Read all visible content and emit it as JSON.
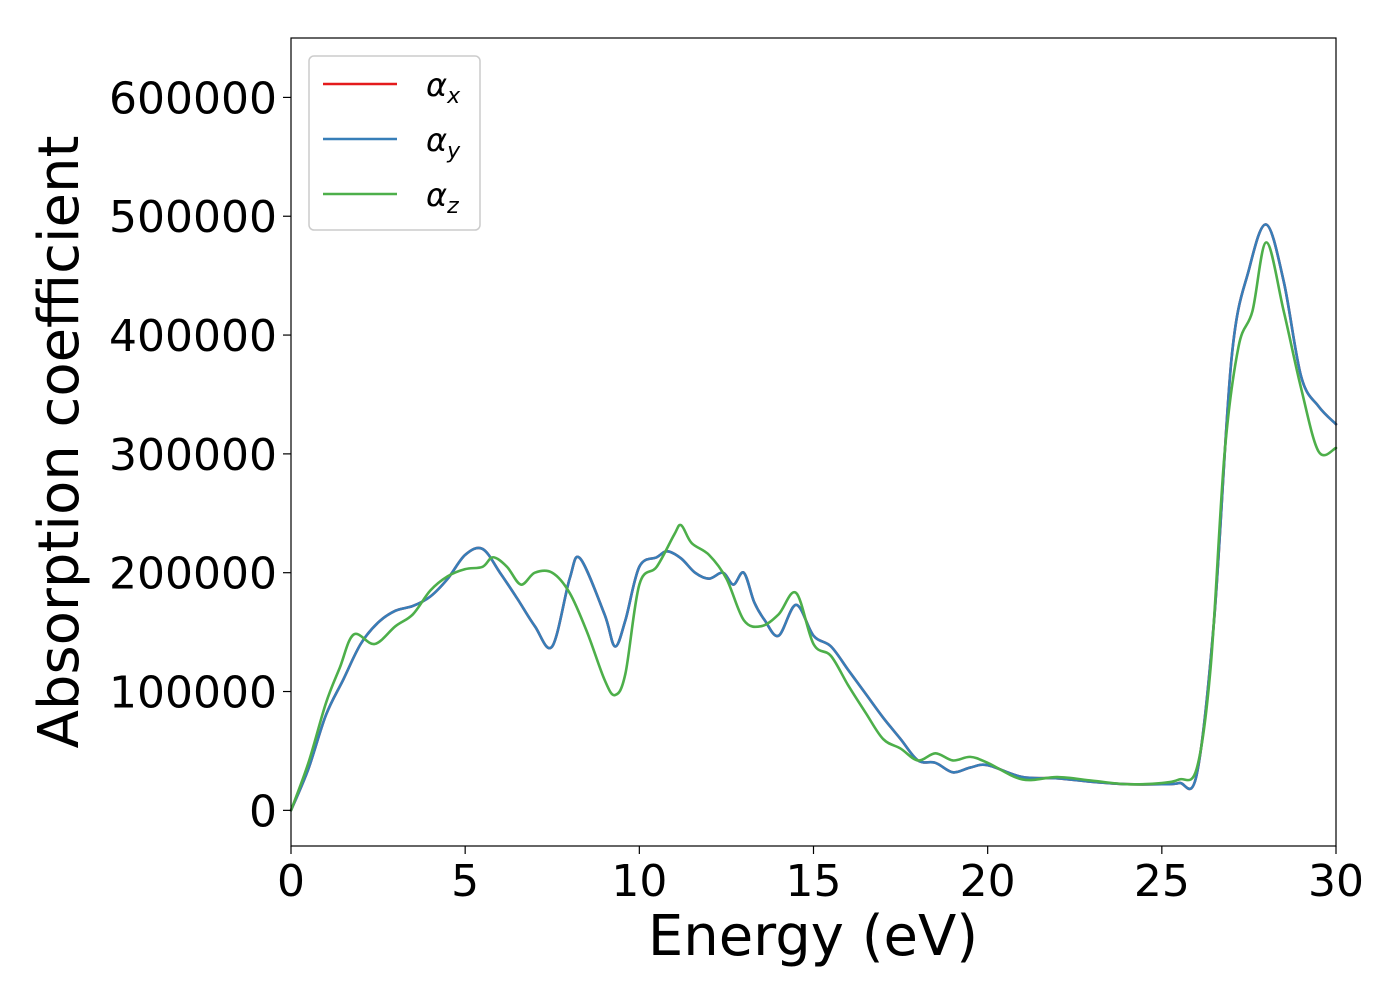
{
  "chart_data": {
    "type": "line",
    "title": "",
    "xlabel": "Energy (eV)",
    "ylabel": "Absorption coefficient",
    "xlim": [
      0,
      30
    ],
    "ylim": [
      -30000,
      650000
    ],
    "xticks": [
      0,
      5,
      10,
      15,
      20,
      25,
      30
    ],
    "yticks": [
      0,
      100000,
      200000,
      300000,
      400000,
      500000,
      600000
    ],
    "xtick_labels": [
      "0",
      "5",
      "10",
      "15",
      "20",
      "25",
      "30"
    ],
    "ytick_labels": [
      "0",
      "100000",
      "200000",
      "300000",
      "400000",
      "500000",
      "600000"
    ],
    "grid": false,
    "legend_position": "top-left",
    "series": [
      {
        "name": "αx",
        "name_base": "α",
        "name_sub": "x",
        "color": "#e41a1c",
        "x": [
          0,
          0.5,
          1.0,
          1.5,
          2.0,
          2.5,
          3.0,
          3.5,
          4.0,
          4.5,
          5.0,
          5.5,
          6.0,
          6.5,
          7.0,
          7.5,
          8.0,
          8.3,
          9.0,
          9.3,
          9.6,
          10.0,
          10.5,
          10.8,
          11.2,
          11.6,
          12.0,
          12.4,
          12.7,
          13.0,
          13.3,
          13.6,
          14.0,
          14.5,
          15.0,
          15.5,
          16.0,
          16.5,
          17.0,
          17.5,
          18.0,
          18.5,
          19.0,
          19.5,
          20.0,
          21.0,
          22.0,
          23.0,
          24.0,
          25.0,
          25.5,
          26.0,
          26.5,
          27.0,
          27.5,
          28.0,
          28.5,
          29.0,
          29.5,
          30.0
        ],
        "values": [
          0,
          35000,
          80000,
          110000,
          140000,
          158000,
          168000,
          172000,
          180000,
          195000,
          215000,
          220000,
          200000,
          178000,
          155000,
          138000,
          195000,
          212000,
          165000,
          138000,
          160000,
          205000,
          213000,
          218000,
          212000,
          200000,
          195000,
          200000,
          190000,
          200000,
          175000,
          160000,
          147000,
          173000,
          147000,
          138000,
          118000,
          98000,
          78000,
          60000,
          42000,
          40000,
          32000,
          36000,
          38000,
          28000,
          27000,
          24000,
          22000,
          22000,
          23000,
          30000,
          160000,
          380000,
          455000,
          493000,
          445000,
          365000,
          340000,
          325000
        ]
      },
      {
        "name": "αy",
        "name_base": "α",
        "name_sub": "y",
        "color": "#377eb8",
        "x": [
          0,
          0.5,
          1.0,
          1.5,
          2.0,
          2.5,
          3.0,
          3.5,
          4.0,
          4.5,
          5.0,
          5.5,
          6.0,
          6.5,
          7.0,
          7.5,
          8.0,
          8.3,
          9.0,
          9.3,
          9.6,
          10.0,
          10.5,
          10.8,
          11.2,
          11.6,
          12.0,
          12.4,
          12.7,
          13.0,
          13.3,
          13.6,
          14.0,
          14.5,
          15.0,
          15.5,
          16.0,
          16.5,
          17.0,
          17.5,
          18.0,
          18.5,
          19.0,
          19.5,
          20.0,
          21.0,
          22.0,
          23.0,
          24.0,
          25.0,
          25.5,
          26.0,
          26.5,
          27.0,
          27.5,
          28.0,
          28.5,
          29.0,
          29.5,
          30.0
        ],
        "values": [
          0,
          35000,
          80000,
          110000,
          140000,
          158000,
          168000,
          172000,
          180000,
          195000,
          215000,
          220000,
          200000,
          178000,
          155000,
          138000,
          195000,
          212000,
          165000,
          138000,
          160000,
          205000,
          213000,
          218000,
          212000,
          200000,
          195000,
          200000,
          190000,
          200000,
          175000,
          160000,
          147000,
          173000,
          147000,
          138000,
          118000,
          98000,
          78000,
          60000,
          42000,
          40000,
          32000,
          36000,
          38000,
          28000,
          27000,
          24000,
          22000,
          22000,
          23000,
          30000,
          160000,
          380000,
          455000,
          493000,
          445000,
          365000,
          340000,
          325000
        ]
      },
      {
        "name": "αz",
        "name_base": "α",
        "name_sub": "z",
        "color": "#4daf4a",
        "x": [
          0,
          0.5,
          1.0,
          1.4,
          1.8,
          2.4,
          3.0,
          3.5,
          4.0,
          4.5,
          5.0,
          5.5,
          5.8,
          6.2,
          6.6,
          7.0,
          7.5,
          8.0,
          8.5,
          9.0,
          9.3,
          9.6,
          10.0,
          10.5,
          11.0,
          11.2,
          11.5,
          12.0,
          12.5,
          13.0,
          13.5,
          14.0,
          14.5,
          15.0,
          15.5,
          16.0,
          16.5,
          17.0,
          17.5,
          18.0,
          18.5,
          19.0,
          19.5,
          20.0,
          21.0,
          22.0,
          23.0,
          24.0,
          25.0,
          25.5,
          26.0,
          26.4,
          26.8,
          27.2,
          27.6,
          28.0,
          28.5,
          29.0,
          29.5,
          30.0
        ],
        "values": [
          0,
          40000,
          90000,
          120000,
          148000,
          140000,
          155000,
          165000,
          185000,
          197000,
          203000,
          205000,
          213000,
          205000,
          190000,
          200000,
          200000,
          183000,
          150000,
          110000,
          97000,
          115000,
          190000,
          205000,
          232000,
          240000,
          225000,
          215000,
          195000,
          160000,
          155000,
          165000,
          183000,
          140000,
          130000,
          105000,
          82000,
          60000,
          52000,
          42000,
          48000,
          42000,
          45000,
          40000,
          26000,
          28000,
          25000,
          22000,
          23000,
          26000,
          35000,
          120000,
          300000,
          390000,
          420000,
          478000,
          420000,
          355000,
          302000,
          305000
        ]
      }
    ]
  }
}
